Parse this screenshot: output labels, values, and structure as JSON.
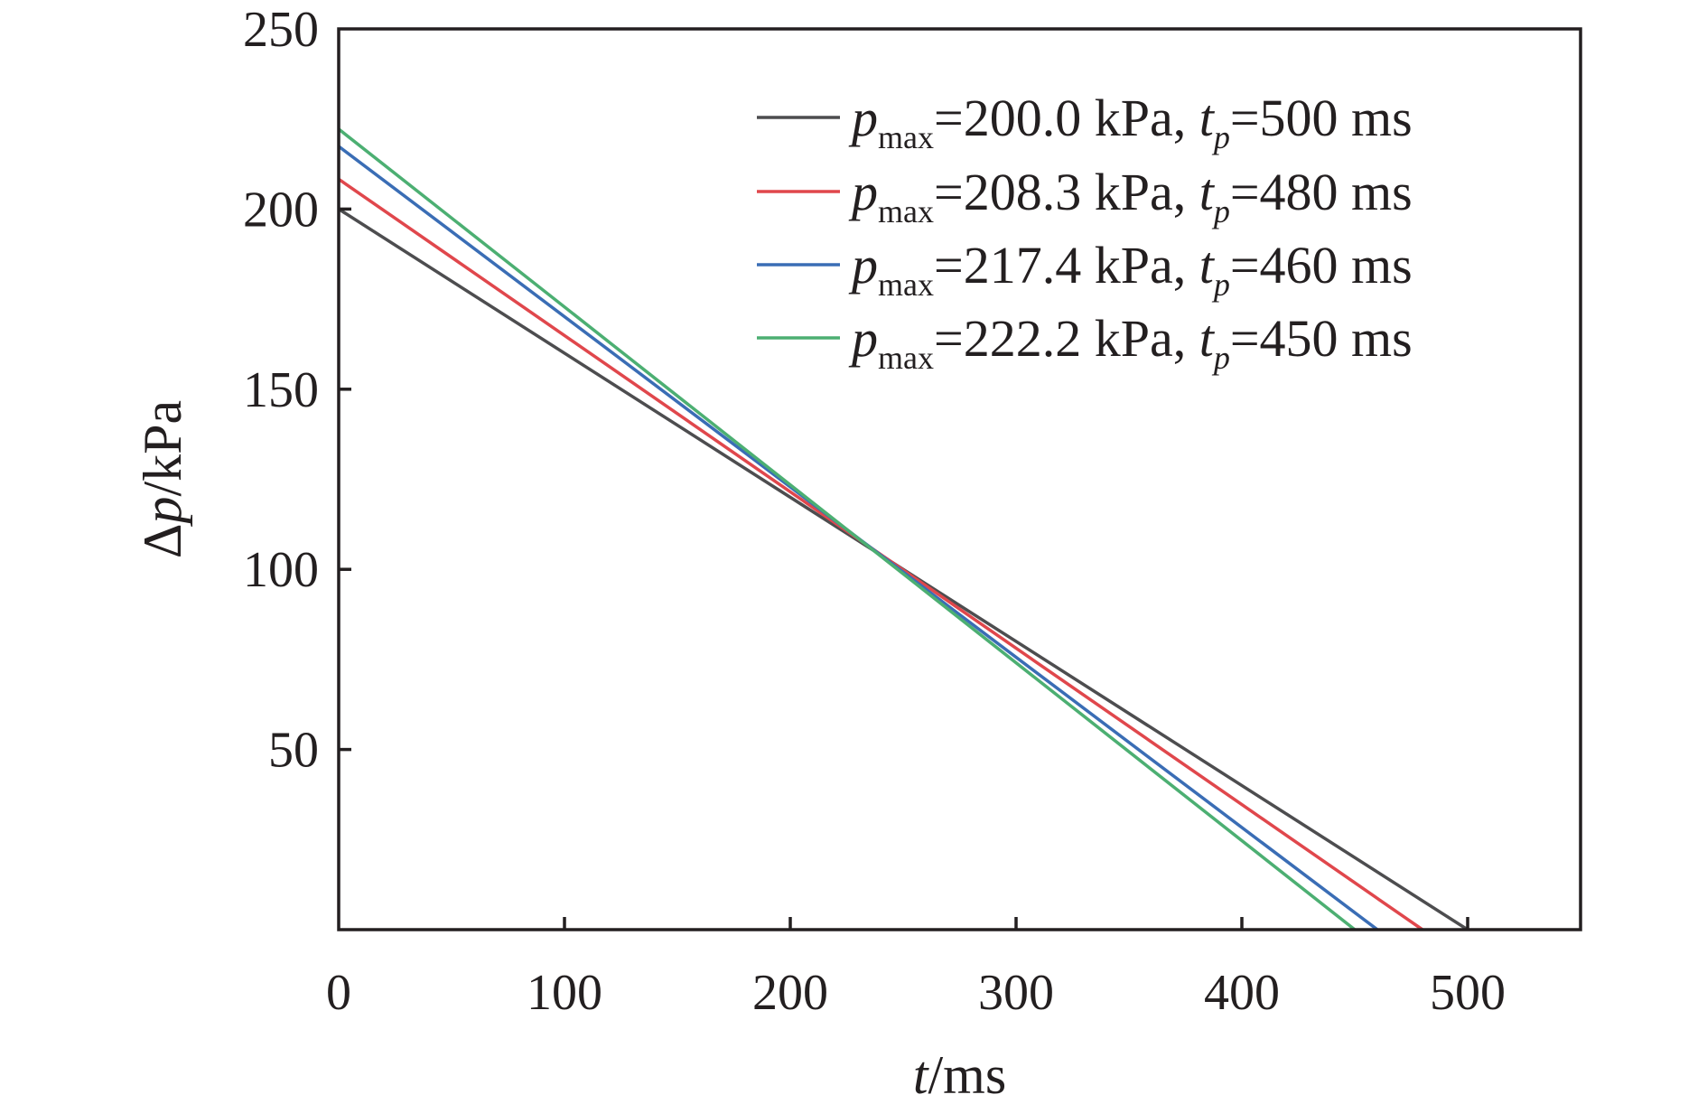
{
  "chart_data": {
    "type": "line",
    "title": "",
    "xlabel": {
      "var": "t",
      "unit": "/ms"
    },
    "ylabel": {
      "var": "p",
      "prefix": "Δ",
      "unit": "/kPa"
    },
    "xlim": [
      0,
      550
    ],
    "ylim": [
      0,
      250
    ],
    "xticks": [
      0,
      100,
      200,
      300,
      400,
      500
    ],
    "xtick_labels": [
      "0",
      "100",
      "200",
      "300",
      "400",
      "500"
    ],
    "yticks": [
      50,
      100,
      150,
      200,
      250
    ],
    "ytick_labels": [
      "50",
      "100",
      "150",
      "200",
      "250"
    ],
    "grid": false,
    "legend_position": "top-right",
    "series": [
      {
        "name": "pmax=200.0 kPa, tp=500 ms",
        "label": {
          "p": "p",
          "sub1": "max",
          "mid": "=200.0 kPa, ",
          "t": "t",
          "sub2": "p",
          "end": "=500 ms"
        },
        "color": "#4d4d4f",
        "x": [
          0,
          500
        ],
        "y": [
          200.0,
          0
        ]
      },
      {
        "name": "pmax=208.3 kPa, tp=480 ms",
        "label": {
          "p": "p",
          "sub1": "max",
          "mid": "=208.3 kPa, ",
          "t": "t",
          "sub2": "p",
          "end": "=480 ms"
        },
        "color": "#e0474c",
        "x": [
          0,
          480
        ],
        "y": [
          208.3,
          0
        ]
      },
      {
        "name": "pmax=217.4 kPa, tp=460 ms",
        "label": {
          "p": "p",
          "sub1": "max",
          "mid": "=217.4 kPa, ",
          "t": "t",
          "sub2": "p",
          "end": "=460 ms"
        },
        "color": "#3a6db5",
        "x": [
          0,
          460
        ],
        "y": [
          217.4,
          0
        ]
      },
      {
        "name": "pmax=222.2 kPa, tp=450 ms",
        "label": {
          "p": "p",
          "sub1": "max",
          "mid": "=222.2 kPa, ",
          "t": "t",
          "sub2": "p",
          "end": "=450 ms"
        },
        "color": "#4caf72",
        "x": [
          0,
          450
        ],
        "y": [
          222.2,
          0
        ]
      }
    ]
  }
}
